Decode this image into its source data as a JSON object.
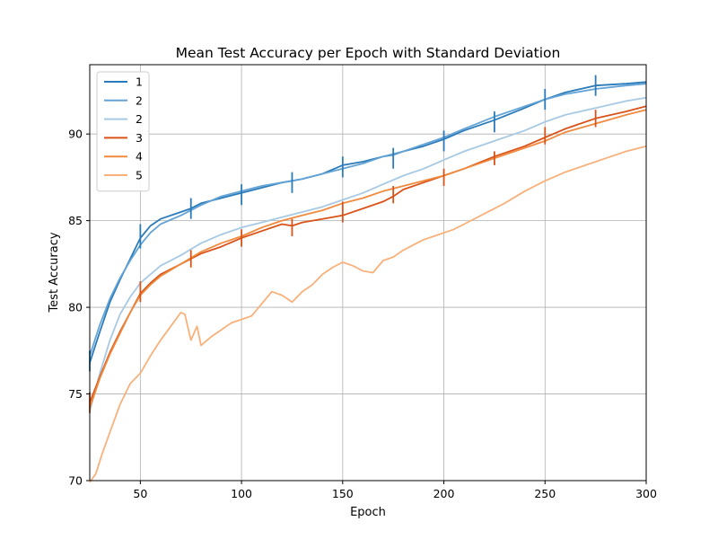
{
  "chart_data": {
    "type": "line",
    "title": "Mean Test Accuracy per Epoch with Standard Deviation",
    "xlabel": "Epoch",
    "ylabel": "Test Accuracy",
    "xlim": [
      25,
      300
    ],
    "ylim": [
      70,
      94
    ],
    "x_ticks": [
      50,
      100,
      150,
      200,
      250,
      300
    ],
    "y_ticks": [
      70,
      75,
      80,
      85,
      90
    ],
    "grid": true,
    "legend_position": "top-left",
    "series": [
      {
        "name": "1",
        "color": "#2b7bba",
        "x": [
          25,
          30,
          35,
          40,
          45,
          50,
          55,
          60,
          70,
          75,
          80,
          90,
          100,
          110,
          120,
          125,
          130,
          140,
          150,
          160,
          170,
          175,
          180,
          190,
          200,
          210,
          225,
          240,
          250,
          260,
          275,
          290,
          300
        ],
        "y": [
          76.8,
          78.6,
          80.3,
          81.6,
          82.8,
          84.0,
          84.7,
          85.1,
          85.5,
          85.7,
          86.0,
          86.3,
          86.6,
          86.9,
          87.2,
          87.3,
          87.4,
          87.7,
          88.2,
          88.4,
          88.7,
          88.8,
          89.0,
          89.3,
          89.7,
          90.2,
          90.8,
          91.5,
          92.0,
          92.4,
          92.8,
          92.9,
          93.0
        ],
        "error_x": [
          25,
          50,
          75,
          100,
          125,
          150,
          175,
          200,
          225,
          250,
          275
        ],
        "error_y": [
          76.9,
          84.1,
          85.7,
          86.5,
          87.2,
          88.1,
          88.6,
          89.6,
          90.7,
          92.0,
          92.8
        ],
        "error_std": [
          0.6,
          0.7,
          0.6,
          0.6,
          0.6,
          0.6,
          0.6,
          0.6,
          0.6,
          0.6,
          0.6
        ]
      },
      {
        "name": "2",
        "color": "#63a3d6",
        "x": [
          25,
          30,
          35,
          40,
          45,
          50,
          55,
          60,
          70,
          80,
          90,
          100,
          110,
          120,
          130,
          140,
          150,
          160,
          170,
          180,
          190,
          200,
          210,
          225,
          240,
          250,
          260,
          275,
          290,
          300
        ],
        "y": [
          77.2,
          79.0,
          80.5,
          81.7,
          82.7,
          83.6,
          84.3,
          84.8,
          85.3,
          85.9,
          86.4,
          86.7,
          87.0,
          87.2,
          87.4,
          87.7,
          88.0,
          88.3,
          88.7,
          89.0,
          89.4,
          89.8,
          90.3,
          91.0,
          91.6,
          92.0,
          92.3,
          92.6,
          92.8,
          92.9
        ]
      },
      {
        "name": "2",
        "color": "#a7c9e3",
        "x": [
          25,
          30,
          35,
          40,
          45,
          50,
          55,
          60,
          70,
          80,
          90,
          100,
          110,
          120,
          130,
          140,
          150,
          160,
          170,
          180,
          190,
          200,
          210,
          225,
          240,
          250,
          260,
          275,
          290,
          300
        ],
        "y": [
          74.0,
          76.2,
          78.1,
          79.6,
          80.6,
          81.4,
          81.9,
          82.4,
          83.0,
          83.7,
          84.2,
          84.6,
          84.9,
          85.2,
          85.5,
          85.8,
          86.2,
          86.6,
          87.1,
          87.6,
          88.0,
          88.5,
          89.0,
          89.6,
          90.2,
          90.7,
          91.1,
          91.5,
          91.9,
          92.1
        ]
      },
      {
        "name": "3",
        "color": "#d95319",
        "x": [
          25,
          30,
          35,
          40,
          45,
          50,
          55,
          60,
          70,
          75,
          80,
          90,
          100,
          110,
          120,
          125,
          130,
          140,
          150,
          160,
          170,
          175,
          180,
          190,
          200,
          210,
          225,
          240,
          250,
          260,
          275,
          290,
          300
        ],
        "y": [
          74.5,
          76.0,
          77.4,
          78.6,
          79.7,
          80.8,
          81.4,
          81.9,
          82.5,
          82.8,
          83.1,
          83.5,
          84.0,
          84.4,
          84.8,
          84.7,
          84.9,
          85.1,
          85.3,
          85.7,
          86.1,
          86.4,
          86.8,
          87.2,
          87.6,
          88.0,
          88.7,
          89.3,
          89.8,
          90.3,
          90.9,
          91.3,
          91.6
        ],
        "error_x": [
          25,
          50,
          75,
          100,
          125,
          150,
          175,
          200,
          225,
          250,
          275
        ],
        "error_y": [
          74.5,
          80.9,
          82.8,
          84.0,
          84.6,
          85.5,
          86.5,
          87.5,
          88.6,
          89.9,
          90.9
        ],
        "error_std": [
          0.6,
          0.6,
          0.5,
          0.5,
          0.5,
          0.6,
          0.5,
          0.5,
          0.4,
          0.5,
          0.5
        ]
      },
      {
        "name": "4",
        "color": "#f08a3e",
        "x": [
          25,
          30,
          35,
          40,
          45,
          50,
          55,
          60,
          70,
          80,
          90,
          100,
          110,
          120,
          130,
          140,
          150,
          160,
          170,
          180,
          190,
          200,
          210,
          225,
          240,
          250,
          260,
          275,
          290,
          300
        ],
        "y": [
          74.2,
          75.9,
          77.3,
          78.5,
          79.7,
          80.7,
          81.3,
          81.8,
          82.5,
          83.2,
          83.7,
          84.1,
          84.6,
          85.0,
          85.3,
          85.6,
          86.0,
          86.3,
          86.7,
          87.0,
          87.3,
          87.6,
          88.0,
          88.6,
          89.2,
          89.6,
          90.1,
          90.6,
          91.1,
          91.4
        ]
      },
      {
        "name": "5",
        "color": "#f8b17b",
        "x": [
          25,
          28,
          31,
          35,
          40,
          45,
          50,
          55,
          60,
          65,
          70,
          72,
          75,
          78,
          80,
          85,
          90,
          95,
          100,
          105,
          110,
          115,
          120,
          125,
          130,
          135,
          140,
          145,
          150,
          155,
          160,
          165,
          170,
          175,
          180,
          185,
          190,
          195,
          200,
          205,
          210,
          220,
          230,
          240,
          250,
          260,
          270,
          280,
          290,
          300
        ],
        "y": [
          69.9,
          70.4,
          71.5,
          72.8,
          74.4,
          75.6,
          76.2,
          77.2,
          78.1,
          78.9,
          79.7,
          79.6,
          78.1,
          78.9,
          77.8,
          78.3,
          78.7,
          79.1,
          79.3,
          79.5,
          80.2,
          80.9,
          80.7,
          80.3,
          80.9,
          81.3,
          81.9,
          82.3,
          82.6,
          82.4,
          82.1,
          82.0,
          82.7,
          82.9,
          83.3,
          83.6,
          83.9,
          84.1,
          84.3,
          84.5,
          84.8,
          85.4,
          86.0,
          86.7,
          87.3,
          87.8,
          88.2,
          88.6,
          89.0,
          89.3
        ]
      }
    ]
  }
}
